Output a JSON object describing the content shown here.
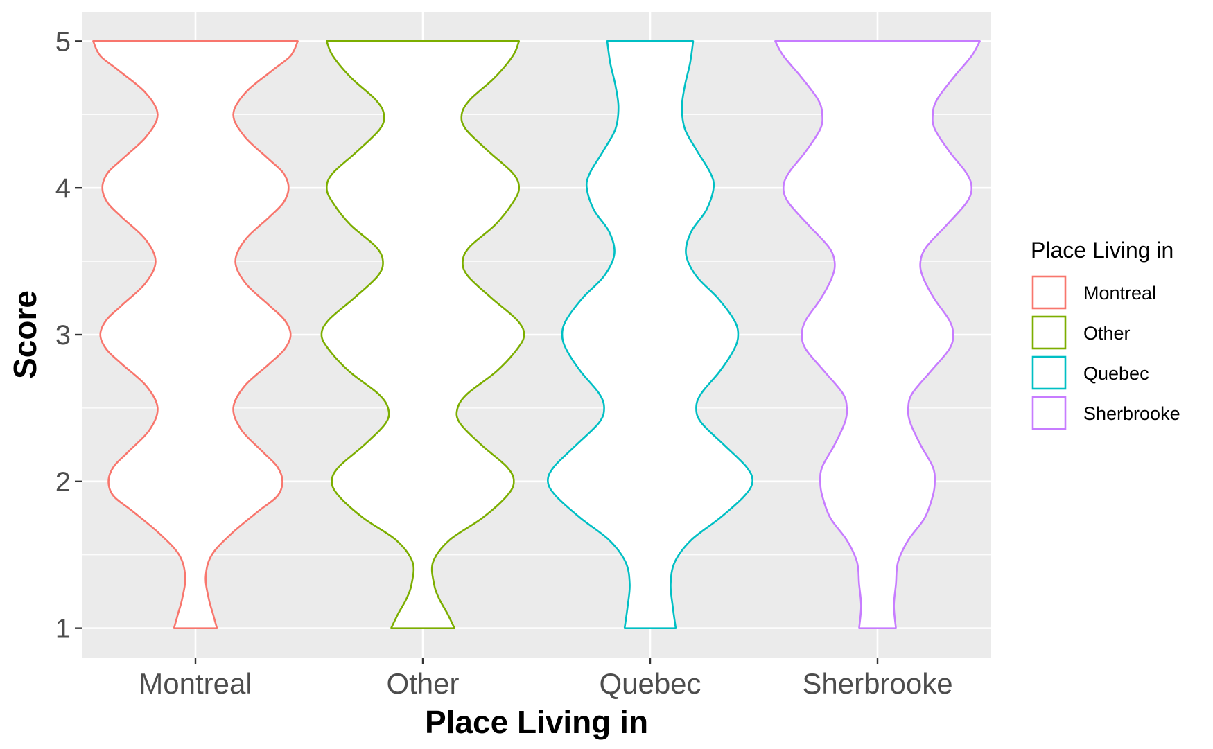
{
  "chart_data": {
    "type": "violin",
    "categories": [
      "Montreal",
      "Other",
      "Quebec",
      "Sherbrooke"
    ],
    "xlabel": "Place Living in",
    "ylabel": "Score",
    "ylim": [
      0.8,
      5.2
    ],
    "yticks": [
      "1",
      "2",
      "3",
      "4",
      "5"
    ],
    "grid": true,
    "legend": {
      "title": "Place Living in",
      "position": "right",
      "entries": [
        "Montreal",
        "Other",
        "Quebec",
        "Sherbrooke"
      ]
    },
    "series": [
      {
        "name": "Montreal",
        "color": "#F8766D",
        "density": [
          [
            1.0,
            0.21
          ],
          [
            1.1,
            0.17
          ],
          [
            1.2,
            0.13
          ],
          [
            1.35,
            0.1
          ],
          [
            1.5,
            0.16
          ],
          [
            1.65,
            0.36
          ],
          [
            1.8,
            0.62
          ],
          [
            1.9,
            0.8
          ],
          [
            2.0,
            0.85
          ],
          [
            2.1,
            0.8
          ],
          [
            2.2,
            0.66
          ],
          [
            2.35,
            0.45
          ],
          [
            2.5,
            0.37
          ],
          [
            2.65,
            0.48
          ],
          [
            2.8,
            0.72
          ],
          [
            2.9,
            0.87
          ],
          [
            3.0,
            0.93
          ],
          [
            3.1,
            0.87
          ],
          [
            3.2,
            0.72
          ],
          [
            3.35,
            0.49
          ],
          [
            3.5,
            0.39
          ],
          [
            3.65,
            0.49
          ],
          [
            3.8,
            0.72
          ],
          [
            3.9,
            0.86
          ],
          [
            4.0,
            0.91
          ],
          [
            4.1,
            0.86
          ],
          [
            4.2,
            0.71
          ],
          [
            4.35,
            0.48
          ],
          [
            4.5,
            0.37
          ],
          [
            4.65,
            0.49
          ],
          [
            4.8,
            0.75
          ],
          [
            4.9,
            0.93
          ],
          [
            5.0,
            1.0
          ]
        ]
      },
      {
        "name": "Other",
        "color": "#7CAE00",
        "density": [
          [
            1.0,
            0.31
          ],
          [
            1.1,
            0.24
          ],
          [
            1.2,
            0.16
          ],
          [
            1.3,
            0.11
          ],
          [
            1.45,
            0.1
          ],
          [
            1.6,
            0.26
          ],
          [
            1.75,
            0.58
          ],
          [
            1.9,
            0.82
          ],
          [
            2.0,
            0.89
          ],
          [
            2.1,
            0.82
          ],
          [
            2.25,
            0.57
          ],
          [
            2.4,
            0.36
          ],
          [
            2.5,
            0.34
          ],
          [
            2.6,
            0.44
          ],
          [
            2.75,
            0.72
          ],
          [
            2.9,
            0.92
          ],
          [
            3.0,
            0.99
          ],
          [
            3.1,
            0.92
          ],
          [
            3.25,
            0.67
          ],
          [
            3.4,
            0.44
          ],
          [
            3.5,
            0.39
          ],
          [
            3.6,
            0.46
          ],
          [
            3.75,
            0.71
          ],
          [
            3.9,
            0.88
          ],
          [
            4.0,
            0.94
          ],
          [
            4.1,
            0.88
          ],
          [
            4.25,
            0.64
          ],
          [
            4.4,
            0.42
          ],
          [
            4.5,
            0.38
          ],
          [
            4.6,
            0.46
          ],
          [
            4.75,
            0.7
          ],
          [
            4.9,
            0.88
          ],
          [
            5.0,
            0.94
          ]
        ]
      },
      {
        "name": "Quebec",
        "color": "#00BFC4",
        "density": [
          [
            1.0,
            0.25
          ],
          [
            1.15,
            0.22
          ],
          [
            1.3,
            0.2
          ],
          [
            1.45,
            0.24
          ],
          [
            1.6,
            0.4
          ],
          [
            1.75,
            0.68
          ],
          [
            1.9,
            0.92
          ],
          [
            2.0,
            1.0
          ],
          [
            2.1,
            0.94
          ],
          [
            2.25,
            0.72
          ],
          [
            2.4,
            0.5
          ],
          [
            2.5,
            0.45
          ],
          [
            2.6,
            0.5
          ],
          [
            2.75,
            0.68
          ],
          [
            2.9,
            0.82
          ],
          [
            3.0,
            0.86
          ],
          [
            3.1,
            0.82
          ],
          [
            3.25,
            0.66
          ],
          [
            3.4,
            0.45
          ],
          [
            3.55,
            0.35
          ],
          [
            3.7,
            0.4
          ],
          [
            3.85,
            0.55
          ],
          [
            4.0,
            0.62
          ],
          [
            4.1,
            0.59
          ],
          [
            4.25,
            0.46
          ],
          [
            4.4,
            0.34
          ],
          [
            4.55,
            0.31
          ],
          [
            4.7,
            0.34
          ],
          [
            4.85,
            0.39
          ],
          [
            5.0,
            0.42
          ]
        ]
      },
      {
        "name": "Sherbrooke",
        "color": "#C77CFF",
        "density": [
          [
            1.0,
            0.18
          ],
          [
            1.15,
            0.16
          ],
          [
            1.3,
            0.18
          ],
          [
            1.45,
            0.2
          ],
          [
            1.6,
            0.3
          ],
          [
            1.75,
            0.46
          ],
          [
            1.9,
            0.54
          ],
          [
            2.0,
            0.56
          ],
          [
            2.1,
            0.54
          ],
          [
            2.25,
            0.42
          ],
          [
            2.4,
            0.32
          ],
          [
            2.5,
            0.3
          ],
          [
            2.6,
            0.34
          ],
          [
            2.75,
            0.52
          ],
          [
            2.9,
            0.7
          ],
          [
            3.0,
            0.74
          ],
          [
            3.1,
            0.7
          ],
          [
            3.25,
            0.55
          ],
          [
            3.4,
            0.44
          ],
          [
            3.5,
            0.42
          ],
          [
            3.6,
            0.48
          ],
          [
            3.75,
            0.68
          ],
          [
            3.9,
            0.87
          ],
          [
            4.0,
            0.92
          ],
          [
            4.1,
            0.87
          ],
          [
            4.25,
            0.7
          ],
          [
            4.4,
            0.56
          ],
          [
            4.5,
            0.54
          ],
          [
            4.6,
            0.58
          ],
          [
            4.75,
            0.74
          ],
          [
            4.9,
            0.92
          ],
          [
            5.0,
            1.0
          ]
        ]
      }
    ]
  }
}
